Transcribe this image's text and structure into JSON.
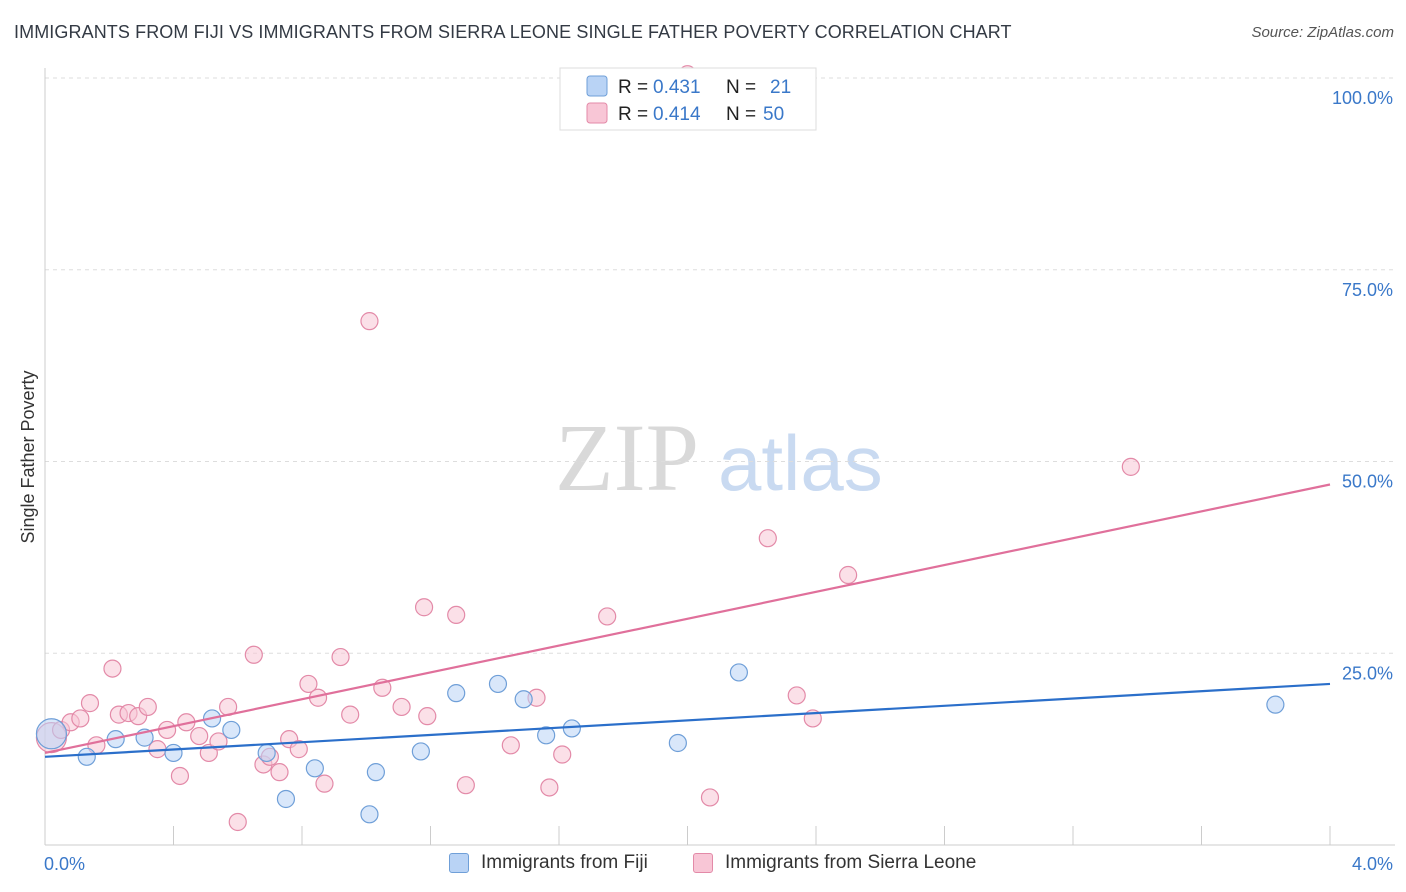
{
  "title": "IMMIGRANTS FROM FIJI VS IMMIGRANTS FROM SIERRA LEONE SINGLE FATHER POVERTY CORRELATION CHART",
  "source": "Source: ZipAtlas.com",
  "watermark": {
    "zip": "ZIP",
    "atlas": "atlas"
  },
  "colors": {
    "fiji_fill": "#b9d3f5",
    "fiji_stroke": "#6f9fd8",
    "fiji_line": "#2b6fca",
    "sl_fill": "#f8c6d6",
    "sl_stroke": "#e38aa8",
    "sl_line": "#e0709b",
    "axis_label": "#3a78c9",
    "grid": "#dddddd"
  },
  "legend_top": {
    "rows": [
      {
        "r_label": "R = ",
        "r_value": "0.431",
        "n_label": "N = ",
        "n_value": "21"
      },
      {
        "r_label": "R = ",
        "r_value": "0.414",
        "n_label": "N = ",
        "n_value": "50"
      }
    ]
  },
  "legend_bottom": {
    "items": [
      {
        "label": "Immigrants from Fiji"
      },
      {
        "label": "Immigrants from Sierra Leone"
      }
    ]
  },
  "chart_data": {
    "type": "scatter",
    "title": "IMMIGRANTS FROM FIJI VS IMMIGRANTS FROM SIERRA LEONE SINGLE FATHER POVERTY CORRELATION CHART",
    "xlabel": "",
    "ylabel": "Single Father Poverty",
    "xlim": [
      0,
      4.0
    ],
    "ylim": [
      0,
      100
    ],
    "x_tick_labels": [
      "0.0%",
      "4.0%"
    ],
    "y_ticks": [
      25,
      50,
      75,
      100
    ],
    "y_tick_labels": [
      "25.0%",
      "50.0%",
      "75.0%",
      "100.0%"
    ],
    "grid": true,
    "series": [
      {
        "name": "Immigrants from Fiji",
        "R": 0.431,
        "N": 21,
        "trend": {
          "x": [
            0,
            4.0
          ],
          "y": [
            11.5,
            21.0
          ]
        },
        "points": [
          {
            "x": 0.02,
            "y": 14.5,
            "big": true
          },
          {
            "x": 0.13,
            "y": 11.5
          },
          {
            "x": 0.22,
            "y": 13.8
          },
          {
            "x": 0.31,
            "y": 14.0
          },
          {
            "x": 0.4,
            "y": 12.0
          },
          {
            "x": 0.52,
            "y": 16.5
          },
          {
            "x": 0.58,
            "y": 15.0
          },
          {
            "x": 0.69,
            "y": 12.0
          },
          {
            "x": 0.75,
            "y": 6.0
          },
          {
            "x": 0.84,
            "y": 10.0
          },
          {
            "x": 1.01,
            "y": 4.0
          },
          {
            "x": 1.03,
            "y": 9.5
          },
          {
            "x": 1.17,
            "y": 12.2
          },
          {
            "x": 1.28,
            "y": 19.8
          },
          {
            "x": 1.41,
            "y": 21.0
          },
          {
            "x": 1.49,
            "y": 19.0
          },
          {
            "x": 1.56,
            "y": 14.3
          },
          {
            "x": 1.64,
            "y": 15.2
          },
          {
            "x": 1.97,
            "y": 13.3
          },
          {
            "x": 2.16,
            "y": 22.5
          },
          {
            "x": 3.83,
            "y": 18.3
          }
        ]
      },
      {
        "name": "Immigrants from Sierra Leone",
        "R": 0.414,
        "N": 50,
        "trend": {
          "x": [
            0,
            4.0
          ],
          "y": [
            12.0,
            47.0
          ]
        },
        "points": [
          {
            "x": 0.02,
            "y": 14.0,
            "big": true
          },
          {
            "x": 0.05,
            "y": 15.0
          },
          {
            "x": 0.08,
            "y": 16.0
          },
          {
            "x": 0.11,
            "y": 16.5
          },
          {
            "x": 0.14,
            "y": 18.5
          },
          {
            "x": 0.16,
            "y": 13.0
          },
          {
            "x": 0.21,
            "y": 23.0
          },
          {
            "x": 0.23,
            "y": 17.0
          },
          {
            "x": 0.26,
            "y": 17.2
          },
          {
            "x": 0.29,
            "y": 16.8
          },
          {
            "x": 0.32,
            "y": 18.0
          },
          {
            "x": 0.35,
            "y": 12.5
          },
          {
            "x": 0.38,
            "y": 15.0
          },
          {
            "x": 0.42,
            "y": 9.0
          },
          {
            "x": 0.44,
            "y": 16.0
          },
          {
            "x": 0.48,
            "y": 14.2
          },
          {
            "x": 0.51,
            "y": 12.0
          },
          {
            "x": 0.54,
            "y": 13.5
          },
          {
            "x": 0.57,
            "y": 18.0
          },
          {
            "x": 0.6,
            "y": 3.0
          },
          {
            "x": 0.65,
            "y": 24.8
          },
          {
            "x": 0.68,
            "y": 10.5
          },
          {
            "x": 0.7,
            "y": 11.5
          },
          {
            "x": 0.73,
            "y": 9.5
          },
          {
            "x": 0.76,
            "y": 13.8
          },
          {
            "x": 0.79,
            "y": 12.5
          },
          {
            "x": 0.82,
            "y": 21.0
          },
          {
            "x": 0.85,
            "y": 19.2
          },
          {
            "x": 0.87,
            "y": 8.0
          },
          {
            "x": 0.92,
            "y": 24.5
          },
          {
            "x": 0.95,
            "y": 17.0
          },
          {
            "x": 1.01,
            "y": 68.3
          },
          {
            "x": 1.05,
            "y": 20.5
          },
          {
            "x": 1.11,
            "y": 18.0
          },
          {
            "x": 1.18,
            "y": 31.0
          },
          {
            "x": 1.19,
            "y": 16.8
          },
          {
            "x": 1.28,
            "y": 30.0
          },
          {
            "x": 1.31,
            "y": 7.8
          },
          {
            "x": 1.45,
            "y": 13.0
          },
          {
            "x": 1.53,
            "y": 19.2
          },
          {
            "x": 1.57,
            "y": 7.5
          },
          {
            "x": 1.61,
            "y": 11.8
          },
          {
            "x": 1.75,
            "y": 29.8
          },
          {
            "x": 2.07,
            "y": 6.2
          },
          {
            "x": 2.25,
            "y": 40.0
          },
          {
            "x": 2.34,
            "y": 19.5
          },
          {
            "x": 2.39,
            "y": 16.5
          },
          {
            "x": 2.5,
            "y": 35.2
          },
          {
            "x": 3.38,
            "y": 49.3
          },
          {
            "x": 2.0,
            "y": 100.5
          }
        ]
      }
    ]
  }
}
